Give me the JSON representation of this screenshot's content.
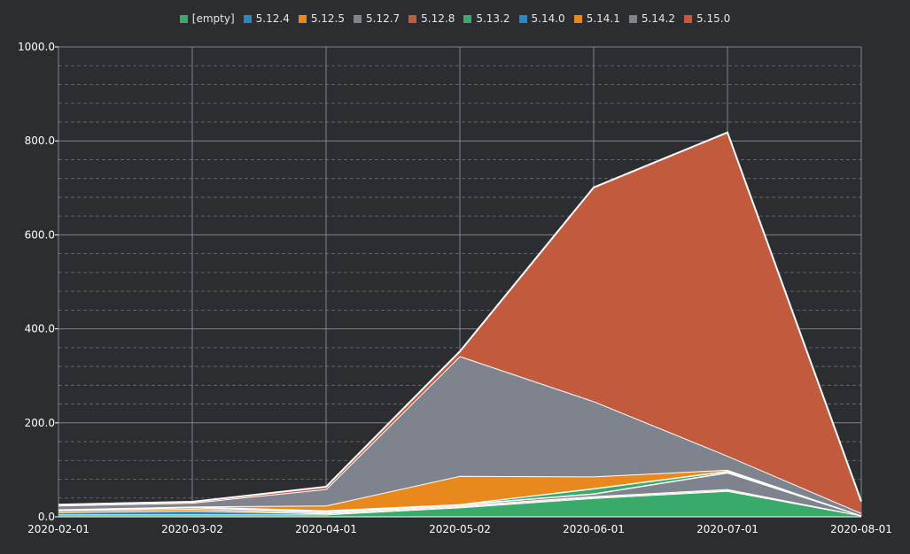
{
  "colors": {
    "background": "#2b2d31",
    "grid": "#8a8d93",
    "axis_text": "#ffffff",
    "area_stroke": "#ffffff"
  },
  "chart_data": {
    "type": "area",
    "stacked": true,
    "x": [
      "2020-02-01",
      "2020-03-02",
      "2020-04-01",
      "2020-05-02",
      "2020-06-01",
      "2020-07-01",
      "2020-08-01"
    ],
    "y_ticks": [
      "0.0",
      "200.0",
      "400.0",
      "600.0",
      "800.0",
      "1000.0"
    ],
    "ylim": [
      0,
      1000
    ],
    "grid": true,
    "legend_position": "top",
    "series": [
      {
        "name": "[empty]",
        "color": "#3aaa6a",
        "values": [
          5,
          5,
          5,
          20,
          40,
          55,
          3
        ]
      },
      {
        "name": "5.12.4",
        "color": "#2e86c1",
        "values": [
          5,
          8,
          2,
          2,
          2,
          2,
          0
        ]
      },
      {
        "name": "5.12.5",
        "color": "#e9891d",
        "values": [
          4,
          4,
          2,
          2,
          2,
          2,
          0
        ]
      },
      {
        "name": "5.12.7",
        "color": "#7e838e",
        "values": [
          1,
          3,
          2,
          2,
          5,
          35,
          0
        ]
      },
      {
        "name": "5.12.8",
        "color": "#c25a3e",
        "values": [
          1,
          2,
          1,
          1,
          1,
          1,
          0
        ]
      },
      {
        "name": "5.13.2",
        "color": "#3aaa6a",
        "values": [
          0,
          0,
          2,
          0,
          10,
          2,
          0
        ]
      },
      {
        "name": "5.14.0",
        "color": "#2e86c1",
        "values": [
          0,
          0,
          0,
          0,
          1,
          1,
          0
        ]
      },
      {
        "name": "5.14.1",
        "color": "#e9891d",
        "values": [
          0,
          0,
          10,
          60,
          25,
          2,
          0
        ]
      },
      {
        "name": "5.14.2",
        "color": "#7e838e",
        "values": [
          8,
          8,
          35,
          255,
          160,
          30,
          5
        ]
      },
      {
        "name": "5.15.0",
        "color": "#c25a3e",
        "values": [
          2,
          2,
          5,
          10,
          455,
          688,
          25
        ]
      }
    ]
  }
}
